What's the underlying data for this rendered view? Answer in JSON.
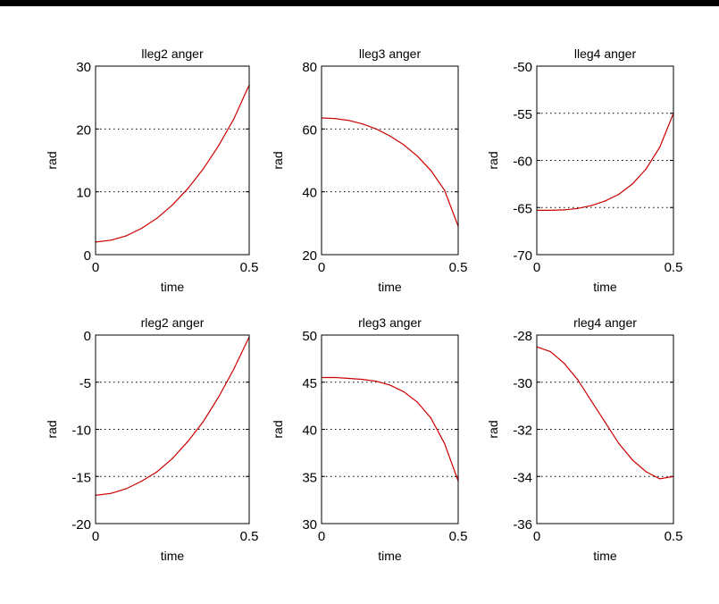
{
  "chart_data": [
    {
      "type": "line",
      "title": "lleg2 anger",
      "xlabel": "time",
      "ylabel": "rad",
      "xlim": [
        0,
        0.5
      ],
      "ylim": [
        0,
        30
      ],
      "xticks": [
        0,
        0.5
      ],
      "xtick_labels": [
        "0",
        "0.5"
      ],
      "yticks": [
        0,
        10,
        20,
        30
      ],
      "ytick_labels": [
        "0",
        "10",
        "20",
        "30"
      ],
      "grid": "y-dotted",
      "line_color": "#cc0000",
      "x": [
        0,
        0.05,
        0.1,
        0.15,
        0.2,
        0.25,
        0.3,
        0.35,
        0.4,
        0.45,
        0.5
      ],
      "y": [
        2.0,
        2.3,
        3.0,
        4.2,
        5.8,
        7.9,
        10.5,
        13.6,
        17.3,
        21.6,
        27.0
      ]
    },
    {
      "type": "line",
      "title": "lleg3 anger",
      "xlabel": "time",
      "ylabel": "rad",
      "xlim": [
        0,
        0.5
      ],
      "ylim": [
        20,
        80
      ],
      "xticks": [
        0,
        0.5
      ],
      "xtick_labels": [
        "0",
        "0.5"
      ],
      "yticks": [
        20,
        40,
        60,
        80
      ],
      "ytick_labels": [
        "20",
        "40",
        "60",
        "80"
      ],
      "grid": "y-dotted",
      "line_color": "#cc0000",
      "x": [
        0,
        0.05,
        0.1,
        0.15,
        0.2,
        0.25,
        0.3,
        0.35,
        0.4,
        0.45,
        0.5
      ],
      "y": [
        63.5,
        63.3,
        62.7,
        61.6,
        60.0,
        57.8,
        55.0,
        51.4,
        46.8,
        40.5,
        29.0
      ]
    },
    {
      "type": "line",
      "title": "lleg4 anger",
      "xlabel": "time",
      "ylabel": "rad",
      "xlim": [
        0,
        0.5
      ],
      "ylim": [
        -70,
        -50
      ],
      "xticks": [
        0,
        0.5
      ],
      "xtick_labels": [
        "0",
        "0.5"
      ],
      "yticks": [
        -70,
        -65,
        -60,
        -55,
        -50
      ],
      "ytick_labels": [
        "-70",
        "-65",
        "-60",
        "-55",
        "-50"
      ],
      "grid": "y-dotted",
      "line_color": "#cc0000",
      "x": [
        0,
        0.05,
        0.1,
        0.15,
        0.2,
        0.25,
        0.3,
        0.35,
        0.4,
        0.45,
        0.5
      ],
      "y": [
        -65.3,
        -65.3,
        -65.25,
        -65.1,
        -64.8,
        -64.3,
        -63.6,
        -62.5,
        -60.9,
        -58.6,
        -55.0
      ]
    },
    {
      "type": "line",
      "title": "rleg2 anger",
      "xlabel": "time",
      "ylabel": "rad",
      "xlim": [
        0,
        0.5
      ],
      "ylim": [
        -20,
        0
      ],
      "xticks": [
        0,
        0.5
      ],
      "xtick_labels": [
        "0",
        "0.5"
      ],
      "yticks": [
        -20,
        -15,
        -10,
        -5,
        0
      ],
      "ytick_labels": [
        "-20",
        "-15",
        "-10",
        "-5",
        "0"
      ],
      "grid": "y-dotted",
      "line_color": "#cc0000",
      "x": [
        0,
        0.05,
        0.1,
        0.15,
        0.2,
        0.25,
        0.3,
        0.35,
        0.4,
        0.45,
        0.5
      ],
      "y": [
        -17.0,
        -16.8,
        -16.3,
        -15.5,
        -14.5,
        -13.1,
        -11.3,
        -9.2,
        -6.6,
        -3.6,
        -0.2
      ]
    },
    {
      "type": "line",
      "title": "rleg3 anger",
      "xlabel": "time",
      "ylabel": "rad",
      "xlim": [
        0,
        0.5
      ],
      "ylim": [
        30,
        50
      ],
      "xticks": [
        0,
        0.5
      ],
      "xtick_labels": [
        "0",
        "0.5"
      ],
      "yticks": [
        30,
        35,
        40,
        45,
        50
      ],
      "ytick_labels": [
        "30",
        "35",
        "40",
        "45",
        "50"
      ],
      "grid": "y-dotted",
      "line_color": "#cc0000",
      "x": [
        0,
        0.05,
        0.1,
        0.15,
        0.2,
        0.25,
        0.3,
        0.35,
        0.4,
        0.45,
        0.5
      ],
      "y": [
        45.5,
        45.5,
        45.4,
        45.3,
        45.1,
        44.7,
        44.0,
        42.9,
        41.2,
        38.5,
        34.5
      ]
    },
    {
      "type": "line",
      "title": "rleg4 anger",
      "xlabel": "time",
      "ylabel": "rad",
      "xlim": [
        0,
        0.5
      ],
      "ylim": [
        -36,
        -28
      ],
      "xticks": [
        0,
        0.5
      ],
      "xtick_labels": [
        "0",
        "0.5"
      ],
      "yticks": [
        -36,
        -34,
        -32,
        -30,
        -28
      ],
      "ytick_labels": [
        "-36",
        "-34",
        "-32",
        "-30",
        "-28"
      ],
      "grid": "y-dotted",
      "line_color": "#cc0000",
      "x": [
        0,
        0.05,
        0.1,
        0.15,
        0.2,
        0.25,
        0.3,
        0.35,
        0.4,
        0.45,
        0.5
      ],
      "y": [
        -28.5,
        -28.7,
        -29.2,
        -29.9,
        -30.8,
        -31.7,
        -32.6,
        -33.3,
        -33.8,
        -34.1,
        -34.0
      ]
    }
  ]
}
